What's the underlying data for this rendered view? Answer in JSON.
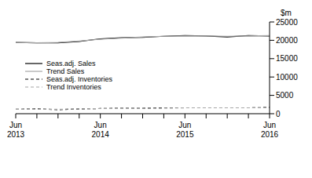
{
  "chart_data": {
    "type": "line",
    "y_label": "$m",
    "categories": [
      "Jun 2013",
      null,
      null,
      null,
      "Jun 2014",
      null,
      null,
      null,
      "Jun 2015",
      null,
      null,
      null,
      "Jun 2016"
    ],
    "series": [
      {
        "name": "Seas.adj. Sales",
        "color": "#000000",
        "line_style": "solid",
        "values": [
          19400,
          19300,
          19300,
          19700,
          20400,
          20700,
          20800,
          21100,
          21300,
          21200,
          20900,
          21300,
          21200
        ]
      },
      {
        "name": "Trend Sales",
        "color": "#a6a6a6",
        "line_style": "solid",
        "values": [
          19400,
          19300,
          19400,
          19800,
          20300,
          20600,
          20900,
          21100,
          21200,
          21200,
          21100,
          21200,
          21300
        ]
      },
      {
        "name": "Seas.adj. Inventories",
        "color": "#000000",
        "line_style": "dashed",
        "values": [
          1200,
          1300,
          1100,
          1300,
          1400,
          1500,
          1500,
          1600,
          1600,
          1600,
          1600,
          1600,
          1700
        ]
      },
      {
        "name": "Trend Inventories",
        "color": "#a6a6a6",
        "line_style": "dashed",
        "values": [
          1200,
          1200,
          1200,
          1300,
          1400,
          1400,
          1500,
          1500,
          1600,
          1600,
          1600,
          1600,
          1600
        ]
      }
    ],
    "ylim": [
      0,
      25000
    ],
    "yticks": [
      0,
      5000,
      10000,
      15000,
      20000,
      25000
    ],
    "grid": false,
    "legend": "upper left"
  }
}
